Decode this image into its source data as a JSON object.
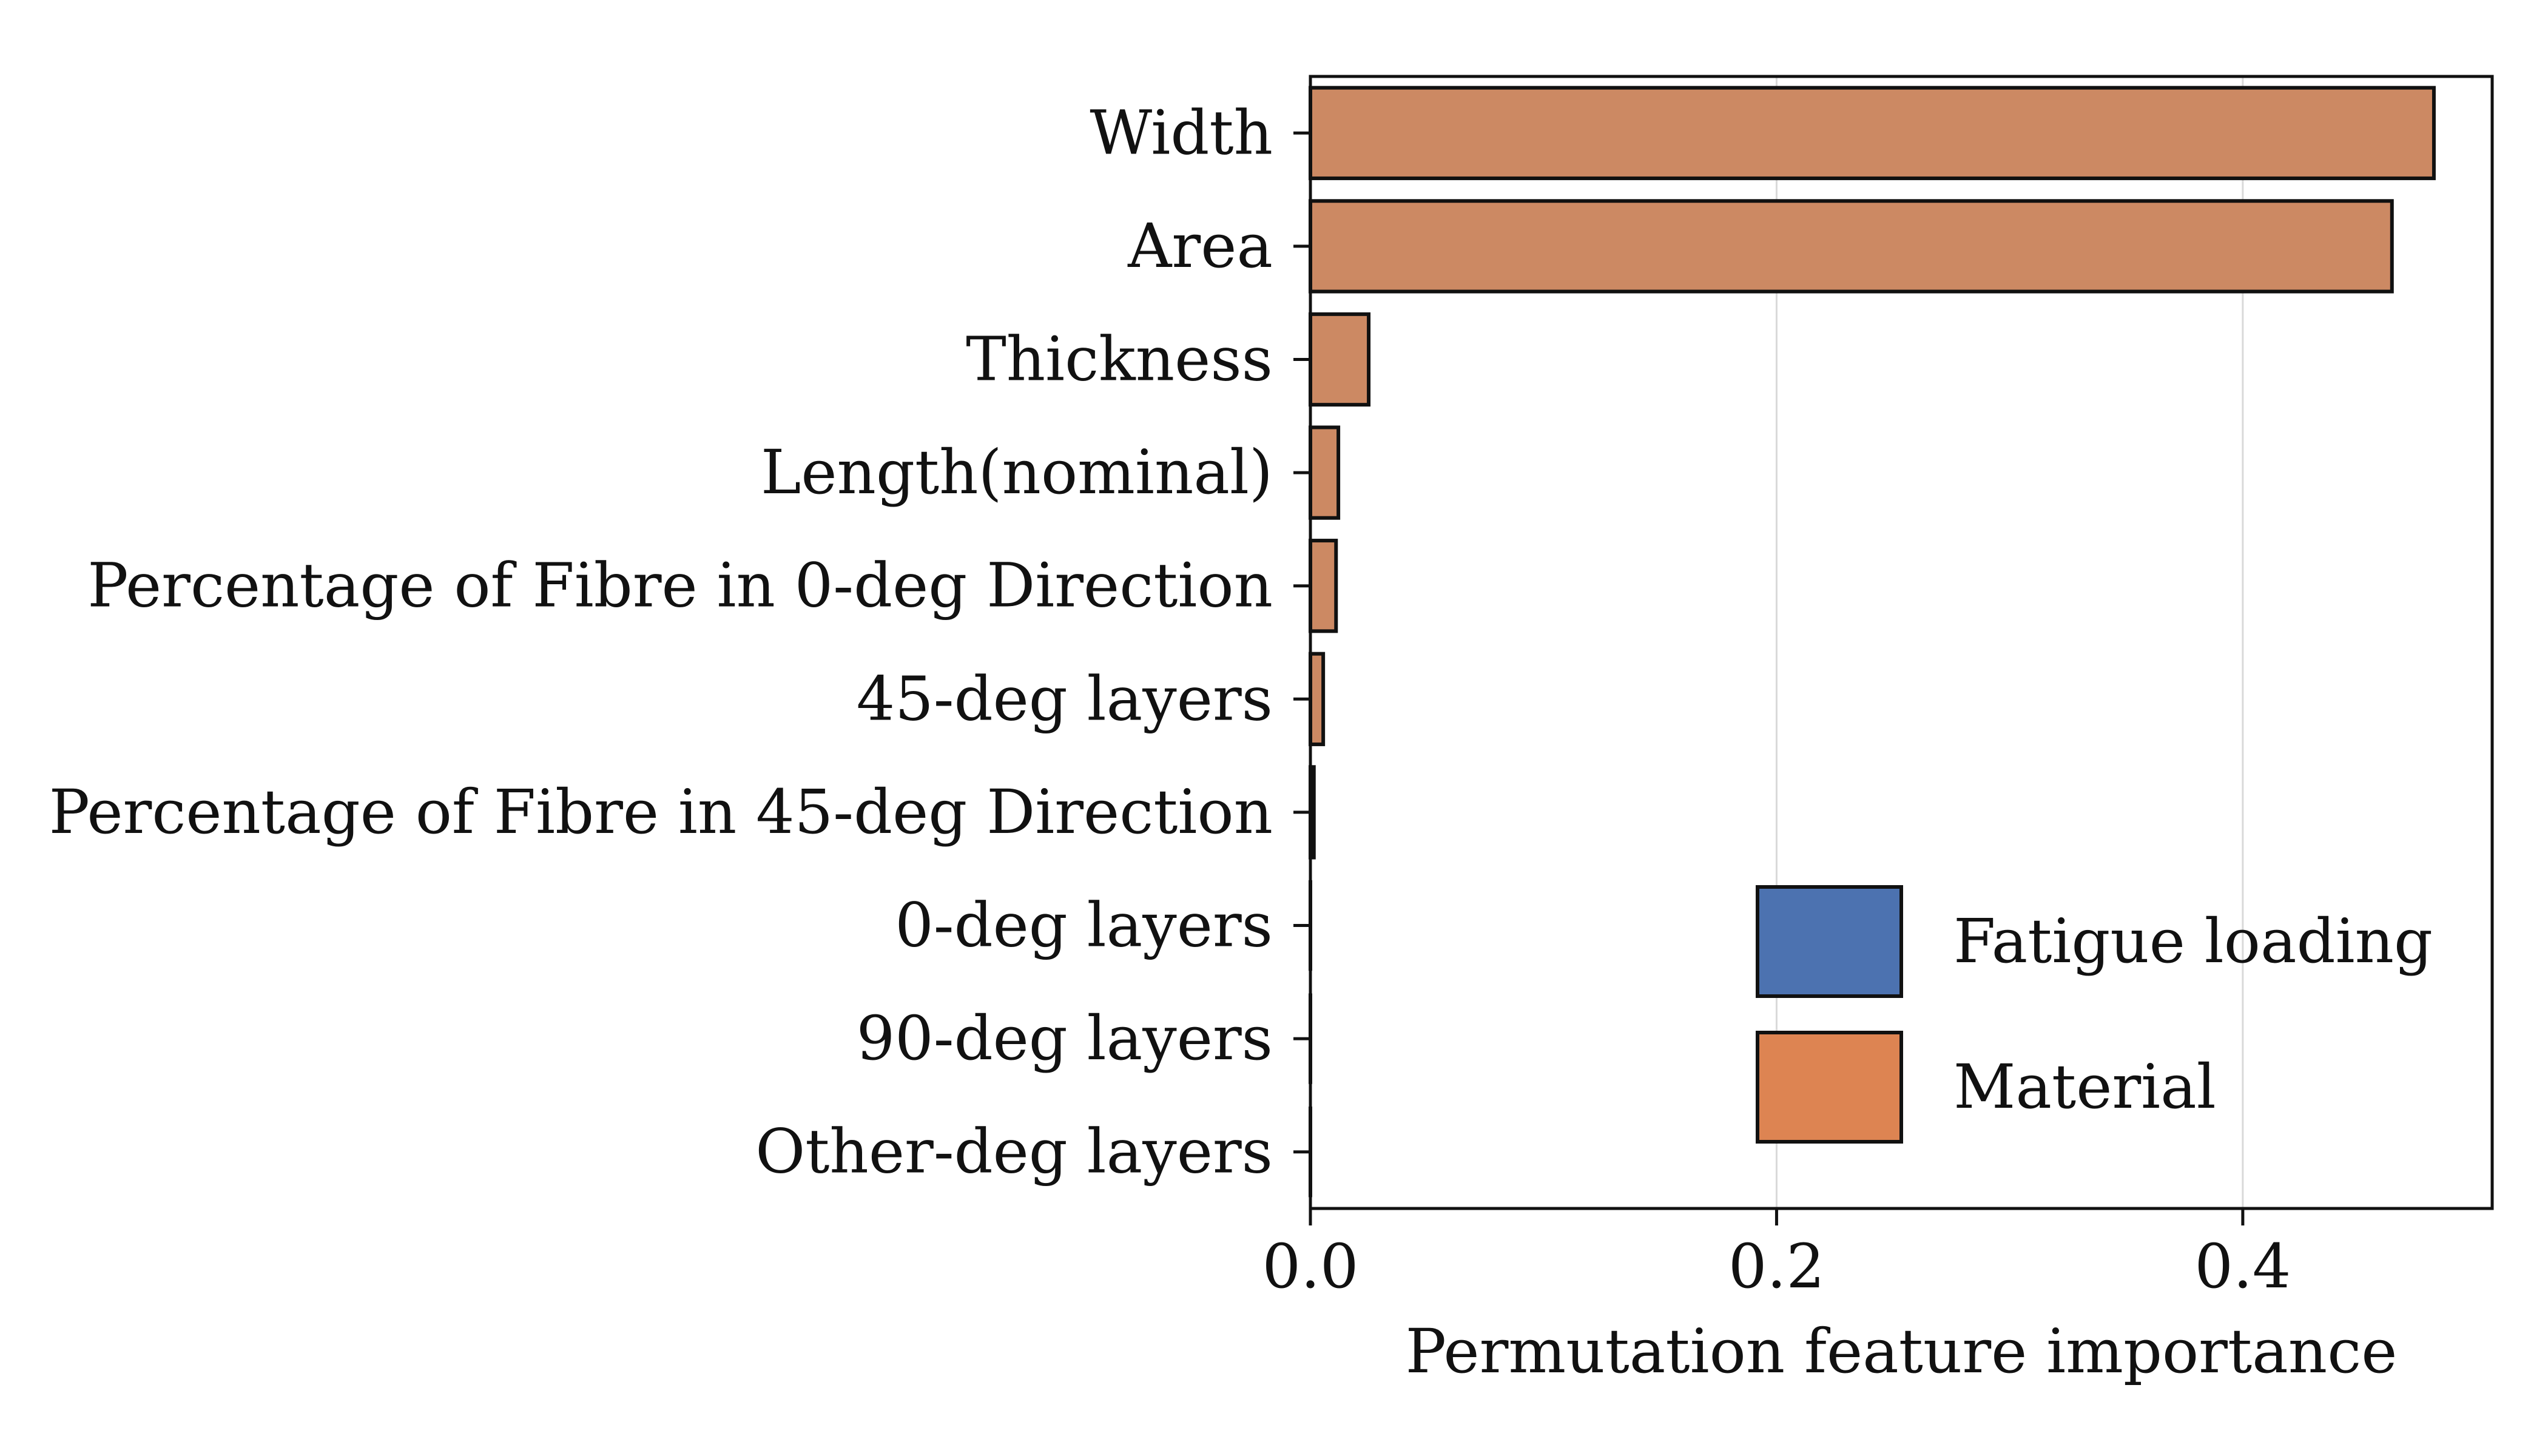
{
  "chart_data": {
    "type": "bar",
    "orientation": "horizontal",
    "categories": [
      "Width",
      "Area",
      "Thickness",
      "Length(nominal)",
      "Percentage of Fibre in 0-deg Direction",
      "45-deg layers",
      "Percentage of Fibre in 45-deg Direction",
      "0-deg layers",
      "90-deg layers",
      "Other-deg layers"
    ],
    "values": [
      0.482,
      0.464,
      0.025,
      0.012,
      0.011,
      0.0055,
      0.0015,
      0.0,
      0.0,
      0.0
    ],
    "bar_groups": [
      "Material",
      "Material",
      "Material",
      "Material",
      "Material",
      "Material",
      "Material",
      "Material",
      "Material",
      "Material"
    ],
    "title": "",
    "xlabel": "Permutation feature importance",
    "ylabel": "",
    "xlim": [
      0.0,
      0.507
    ],
    "xticks": [
      0.0,
      0.2,
      0.4
    ],
    "xtick_labels": [
      "0.0",
      "0.2",
      "0.4"
    ],
    "grid": "vertical",
    "legend": {
      "position": "lower-right",
      "entries": [
        {
          "label": "Fatigue loading",
          "color": "#4c72b0"
        },
        {
          "label": "Material",
          "color": "#dd8452"
        }
      ]
    },
    "colors": {
      "Fatigue loading": "#4c72b0",
      "Material": "#dd8452",
      "bar_fill_rendered": "#cc8963",
      "edge": "#111111",
      "grid": "#d9d9d9"
    }
  }
}
